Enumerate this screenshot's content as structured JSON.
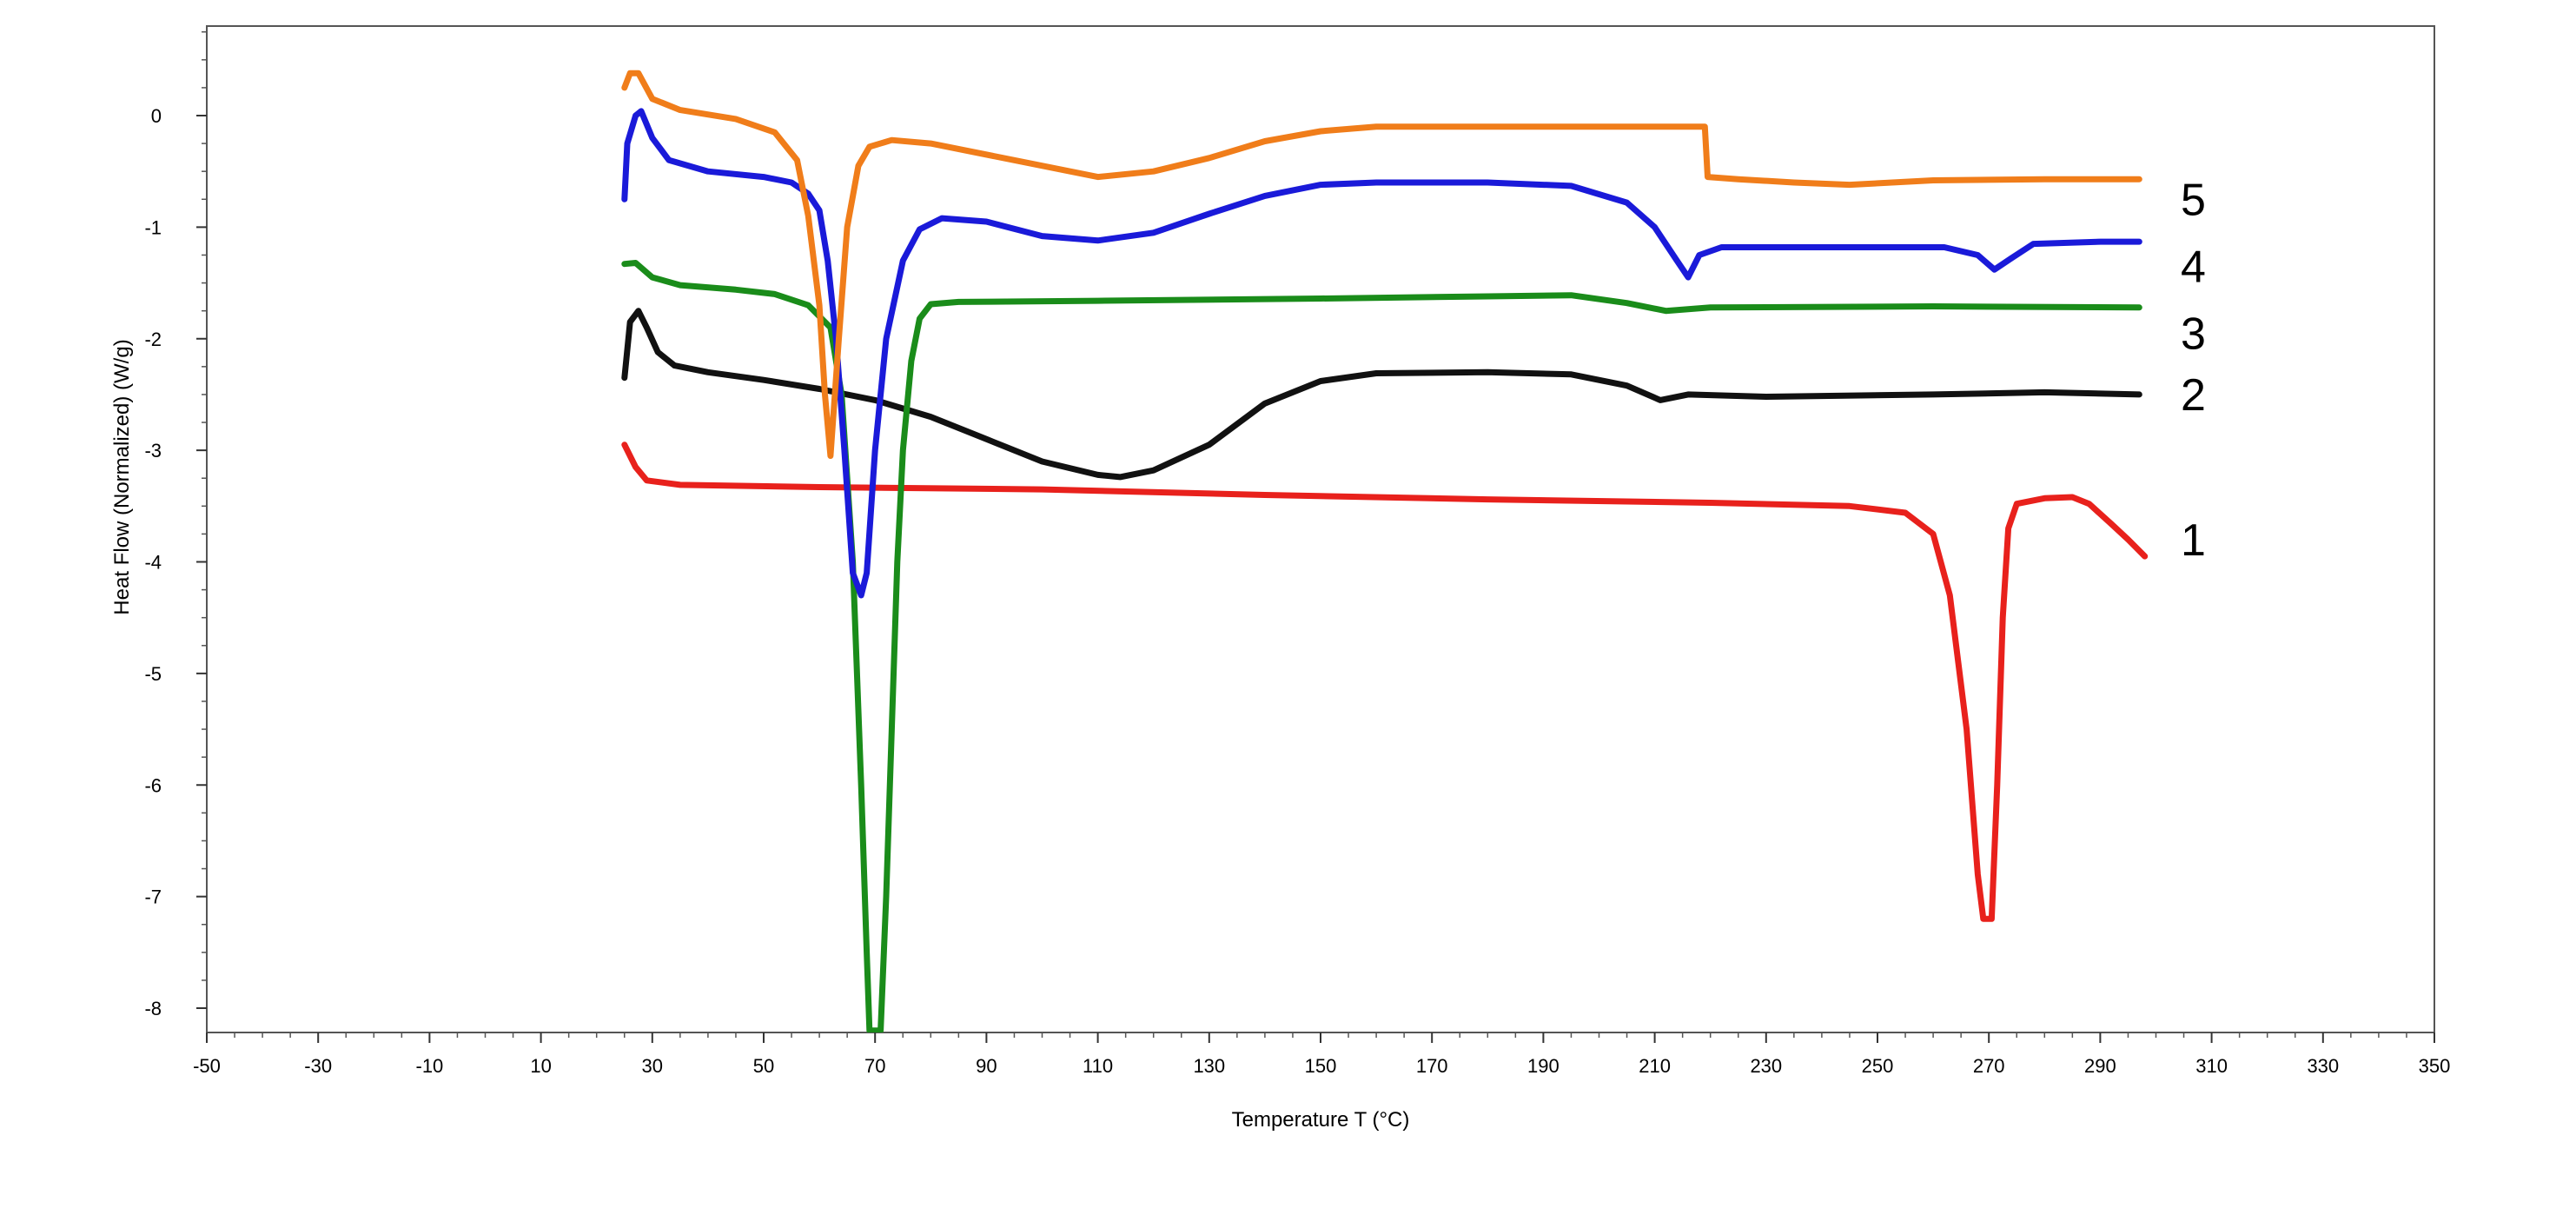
{
  "chart_data": {
    "type": "line",
    "title": "",
    "xlabel": "Temperature  T  (°C)",
    "ylabel": "Heat Flow (Normalized)  (W/g)",
    "xlim": [
      -50,
      350
    ],
    "ylim": [
      -8.2,
      0.8
    ],
    "xticks": [
      -50,
      -30,
      -10,
      10,
      30,
      50,
      70,
      90,
      110,
      130,
      150,
      170,
      190,
      210,
      230,
      250,
      270,
      290,
      310,
      330,
      350
    ],
    "yticks": [
      0,
      -1,
      -2,
      -3,
      -4,
      -5,
      -6,
      -7,
      -8
    ],
    "grid": false,
    "series": [
      {
        "name": "1",
        "color": "#e8211c",
        "points": [
          [
            25,
            -2.95
          ],
          [
            27,
            -3.15
          ],
          [
            29,
            -3.27
          ],
          [
            35,
            -3.31
          ],
          [
            60,
            -3.33
          ],
          [
            100,
            -3.35
          ],
          [
            140,
            -3.4
          ],
          [
            180,
            -3.44
          ],
          [
            220,
            -3.47
          ],
          [
            245,
            -3.5
          ],
          [
            255,
            -3.56
          ],
          [
            260,
            -3.75
          ],
          [
            263,
            -4.3
          ],
          [
            266,
            -5.5
          ],
          [
            268,
            -6.8
          ],
          [
            269,
            -7.2
          ],
          [
            270.5,
            -7.2
          ],
          [
            271.5,
            -6.0
          ],
          [
            272.5,
            -4.5
          ],
          [
            273.5,
            -3.7
          ],
          [
            275,
            -3.48
          ],
          [
            280,
            -3.43
          ],
          [
            285,
            -3.42
          ],
          [
            288,
            -3.48
          ],
          [
            292,
            -3.66
          ],
          [
            295,
            -3.8
          ],
          [
            298,
            -3.95
          ]
        ]
      },
      {
        "name": "2",
        "color": "#111111",
        "points": [
          [
            25,
            -2.35
          ],
          [
            26,
            -1.85
          ],
          [
            27.5,
            -1.75
          ],
          [
            29,
            -1.9
          ],
          [
            31,
            -2.12
          ],
          [
            34,
            -2.24
          ],
          [
            40,
            -2.3
          ],
          [
            50,
            -2.37
          ],
          [
            60,
            -2.45
          ],
          [
            70,
            -2.55
          ],
          [
            80,
            -2.7
          ],
          [
            90,
            -2.9
          ],
          [
            100,
            -3.1
          ],
          [
            110,
            -3.22
          ],
          [
            114,
            -3.24
          ],
          [
            120,
            -3.18
          ],
          [
            130,
            -2.95
          ],
          [
            140,
            -2.58
          ],
          [
            150,
            -2.38
          ],
          [
            160,
            -2.31
          ],
          [
            180,
            -2.3
          ],
          [
            195,
            -2.32
          ],
          [
            205,
            -2.42
          ],
          [
            211,
            -2.55
          ],
          [
            216,
            -2.5
          ],
          [
            230,
            -2.52
          ],
          [
            260,
            -2.5
          ],
          [
            280,
            -2.48
          ],
          [
            297,
            -2.5
          ]
        ]
      },
      {
        "name": "3",
        "color": "#1a8c1a",
        "points": [
          [
            25,
            -1.33
          ],
          [
            27,
            -1.32
          ],
          [
            30,
            -1.45
          ],
          [
            35,
            -1.52
          ],
          [
            45,
            -1.56
          ],
          [
            52,
            -1.6
          ],
          [
            58,
            -1.7
          ],
          [
            62,
            -1.9
          ],
          [
            64,
            -2.5
          ],
          [
            66,
            -4.0
          ],
          [
            67.5,
            -6.0
          ],
          [
            68.5,
            -7.5
          ],
          [
            69,
            -8.2
          ],
          [
            71,
            -8.2
          ],
          [
            72,
            -7.0
          ],
          [
            73,
            -5.5
          ],
          [
            74,
            -4.0
          ],
          [
            75,
            -3.0
          ],
          [
            76.5,
            -2.2
          ],
          [
            78,
            -1.82
          ],
          [
            80,
            -1.69
          ],
          [
            85,
            -1.67
          ],
          [
            110,
            -1.66
          ],
          [
            150,
            -1.64
          ],
          [
            180,
            -1.62
          ],
          [
            195,
            -1.61
          ],
          [
            205,
            -1.68
          ],
          [
            212,
            -1.75
          ],
          [
            220,
            -1.72
          ],
          [
            260,
            -1.71
          ],
          [
            297,
            -1.72
          ]
        ]
      },
      {
        "name": "4",
        "color": "#1a1ad9",
        "points": [
          [
            25,
            -0.75
          ],
          [
            25.5,
            -0.25
          ],
          [
            27,
            0.0
          ],
          [
            28,
            0.04
          ],
          [
            30,
            -0.2
          ],
          [
            33,
            -0.4
          ],
          [
            40,
            -0.5
          ],
          [
            50,
            -0.55
          ],
          [
            55,
            -0.6
          ],
          [
            58,
            -0.7
          ],
          [
            60,
            -0.85
          ],
          [
            61.5,
            -1.3
          ],
          [
            63,
            -2.0
          ],
          [
            64.5,
            -3.0
          ],
          [
            66,
            -4.1
          ],
          [
            67.5,
            -4.3
          ],
          [
            68.5,
            -4.1
          ],
          [
            70,
            -3.0
          ],
          [
            72,
            -2.0
          ],
          [
            75,
            -1.3
          ],
          [
            78,
            -1.02
          ],
          [
            82,
            -0.92
          ],
          [
            90,
            -0.95
          ],
          [
            100,
            -1.08
          ],
          [
            110,
            -1.12
          ],
          [
            120,
            -1.05
          ],
          [
            130,
            -0.88
          ],
          [
            140,
            -0.72
          ],
          [
            150,
            -0.62
          ],
          [
            160,
            -0.6
          ],
          [
            180,
            -0.6
          ],
          [
            195,
            -0.63
          ],
          [
            205,
            -0.78
          ],
          [
            210,
            -1.0
          ],
          [
            214,
            -1.3
          ],
          [
            216,
            -1.45
          ],
          [
            218,
            -1.25
          ],
          [
            222,
            -1.18
          ],
          [
            240,
            -1.18
          ],
          [
            262,
            -1.18
          ],
          [
            268,
            -1.25
          ],
          [
            271,
            -1.38
          ],
          [
            274,
            -1.28
          ],
          [
            278,
            -1.15
          ],
          [
            290,
            -1.13
          ],
          [
            297,
            -1.13
          ]
        ]
      },
      {
        "name": "5",
        "color": "#f07d1a",
        "points": [
          [
            25,
            0.25
          ],
          [
            26,
            0.38
          ],
          [
            27.5,
            0.38
          ],
          [
            30,
            0.15
          ],
          [
            35,
            0.05
          ],
          [
            45,
            -0.03
          ],
          [
            52,
            -0.15
          ],
          [
            56,
            -0.4
          ],
          [
            58,
            -0.9
          ],
          [
            60,
            -1.7
          ],
          [
            61,
            -2.5
          ],
          [
            62,
            -3.05
          ],
          [
            63.5,
            -2.0
          ],
          [
            65,
            -1.0
          ],
          [
            67,
            -0.45
          ],
          [
            69,
            -0.28
          ],
          [
            73,
            -0.22
          ],
          [
            80,
            -0.25
          ],
          [
            95,
            -0.4
          ],
          [
            110,
            -0.55
          ],
          [
            120,
            -0.5
          ],
          [
            130,
            -0.38
          ],
          [
            140,
            -0.23
          ],
          [
            150,
            -0.14
          ],
          [
            160,
            -0.1
          ],
          [
            190,
            -0.1
          ],
          [
            210,
            -0.1
          ],
          [
            219,
            -0.1
          ],
          [
            219.5,
            -0.55
          ],
          [
            225,
            -0.57
          ],
          [
            235,
            -0.6
          ],
          [
            245,
            -0.62
          ],
          [
            260,
            -0.58
          ],
          [
            280,
            -0.57
          ],
          [
            297,
            -0.57
          ]
        ]
      }
    ]
  }
}
